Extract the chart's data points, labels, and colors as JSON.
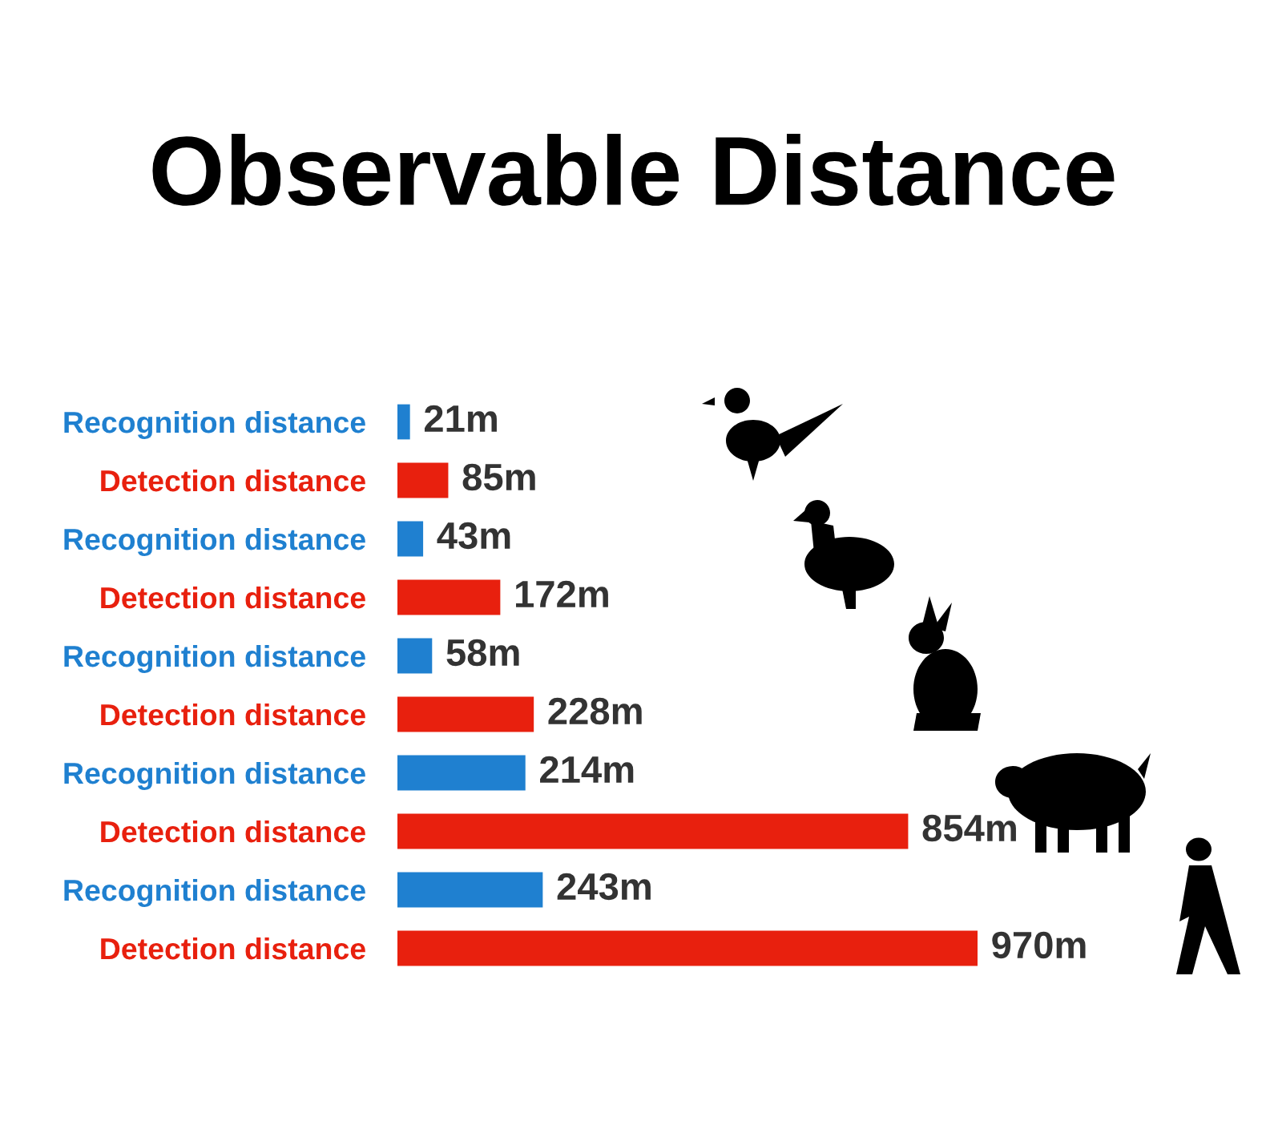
{
  "chart_data": {
    "type": "bar",
    "orientation": "horizontal",
    "title": "Observable Distance",
    "categories": [
      "Recognition distance",
      "Detection distance",
      "Recognition distance",
      "Detection distance",
      "Recognition distance",
      "Detection distance",
      "Recognition distance",
      "Detection distance",
      "Recognition distance",
      "Detection distance"
    ],
    "values": [
      21,
      85,
      43,
      172,
      58,
      228,
      214,
      854,
      243,
      970
    ],
    "value_labels": [
      "21m",
      "85m",
      "43m",
      "172m",
      "58m",
      "228m",
      "214m",
      "854m",
      "243m",
      "970m"
    ],
    "colors": [
      "#1f80d0",
      "#e8200e",
      "#1f80d0",
      "#e8200e",
      "#1f80d0",
      "#e8200e",
      "#1f80d0",
      "#e8200e",
      "#1f80d0",
      "#e8200e"
    ],
    "tick_labels": "y",
    "grid": false,
    "legend": false
  }
}
